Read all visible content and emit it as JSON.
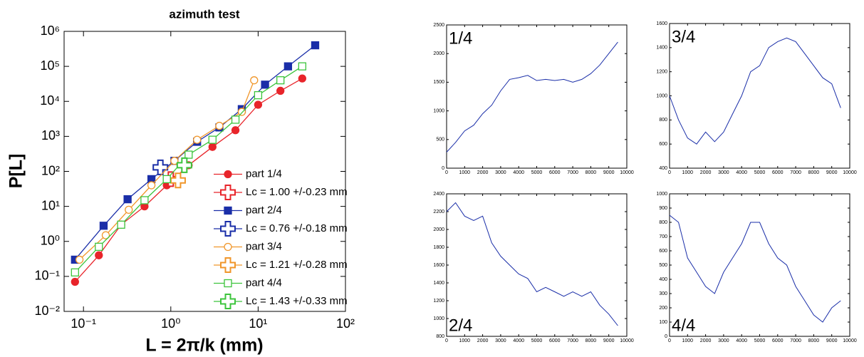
{
  "chart_data": [
    {
      "type": "line",
      "title": "azimuth test",
      "x_label": "L = 2π/k (mm)",
      "y_label": "P[L]",
      "xscale": "log",
      "yscale": "log",
      "grid": false,
      "legend": "lower right",
      "xlim": [
        0.06,
        100
      ],
      "ylim": [
        0.01,
        1000000
      ],
      "xticks": [
        {
          "value": 0.1,
          "label": "10⁻¹"
        },
        {
          "value": 1,
          "label": "10⁰"
        },
        {
          "value": 10,
          "label": "10¹"
        },
        {
          "value": 100,
          "label": "10²"
        }
      ],
      "yticks": [
        {
          "value": 0.01,
          "label": "10⁻²"
        },
        {
          "value": 0.1,
          "label": "10⁻¹"
        },
        {
          "value": 1,
          "label": "10⁰"
        },
        {
          "value": 10,
          "label": "10¹"
        },
        {
          "value": 100,
          "label": "10²"
        },
        {
          "value": 1000,
          "label": "10³"
        },
        {
          "value": 10000,
          "label": "10⁴"
        },
        {
          "value": 100000,
          "label": "10⁵"
        },
        {
          "value": 1000000,
          "label": "10⁶"
        }
      ],
      "series": [
        {
          "name": "part 1/4",
          "color": "#e8242a",
          "marker": "circle-filled",
          "line": true,
          "x": [
            0.08,
            0.15,
            0.27,
            0.5,
            0.9,
            1.6,
            3,
            5.5,
            10,
            18,
            32
          ],
          "values": [
            0.07,
            0.4,
            3,
            10,
            40,
            150,
            500,
            1500,
            8000,
            20000,
            45000
          ]
        },
        {
          "name": "Lc = 1.00 +/-0.23 mm",
          "color": "#e8242a",
          "marker": "cross-open",
          "line": false,
          "x": [
            1.0
          ],
          "values": [
            60
          ]
        },
        {
          "name": "part 2/4",
          "color": "#1a2ea8",
          "marker": "square-filled",
          "line": true,
          "x": [
            0.08,
            0.17,
            0.32,
            0.6,
            1.1,
            2,
            3.6,
            6.5,
            12,
            22,
            45
          ],
          "values": [
            0.3,
            2.8,
            16,
            60,
            200,
            700,
            1800,
            6000,
            30000,
            100000,
            400000
          ]
        },
        {
          "name": "Lc = 0.76 +/-0.18 mm",
          "color": "#1a2ea8",
          "marker": "cross-open",
          "line": false,
          "x": [
            0.76
          ],
          "values": [
            130
          ]
        },
        {
          "name": "part 3/4",
          "color": "#f0962a",
          "marker": "circle-open",
          "line": true,
          "x": [
            0.09,
            0.18,
            0.33,
            0.6,
            1.1,
            2,
            3.6,
            6.5,
            9
          ],
          "values": [
            0.3,
            1.5,
            8,
            40,
            200,
            800,
            2000,
            5000,
            40000
          ]
        },
        {
          "name": "Lc = 1.21 +/-0.28 mm",
          "color": "#f0962a",
          "marker": "cross-open",
          "line": false,
          "x": [
            1.21
          ],
          "values": [
            55
          ]
        },
        {
          "name": "part 4/4",
          "color": "#3cc43c",
          "marker": "square-open",
          "line": true,
          "x": [
            0.08,
            0.15,
            0.27,
            0.5,
            0.9,
            1.6,
            3,
            5.5,
            10,
            18,
            32
          ],
          "values": [
            0.13,
            0.7,
            3,
            15,
            60,
            300,
            800,
            3000,
            15000,
            40000,
            100000
          ]
        },
        {
          "name": "Lc = 1.43 +/-0.33 mm",
          "color": "#3cc43c",
          "marker": "cross-open",
          "line": false,
          "x": [
            1.43
          ],
          "values": [
            150
          ]
        }
      ]
    },
    {
      "type": "line",
      "panel_label": "1/4",
      "label_corner": "top-left",
      "color": "#1a2ea8",
      "xlim": [
        0,
        10000
      ],
      "ylim": [
        0,
        2500
      ],
      "xticks": [
        0,
        1000,
        2000,
        3000,
        4000,
        5000,
        6000,
        7000,
        8000,
        9000,
        10000
      ],
      "yticks": [
        0,
        500,
        1000,
        1500,
        2000,
        2500
      ],
      "x": [
        0,
        500,
        1000,
        1500,
        2000,
        2500,
        3000,
        3500,
        4000,
        4500,
        5000,
        5500,
        6000,
        6500,
        7000,
        7500,
        8000,
        8500,
        9000,
        9500
      ],
      "values": [
        280,
        450,
        650,
        750,
        950,
        1100,
        1350,
        1550,
        1580,
        1620,
        1530,
        1550,
        1530,
        1550,
        1500,
        1550,
        1650,
        1800,
        2000,
        2200
      ]
    },
    {
      "type": "line",
      "panel_label": "3/4",
      "label_corner": "top-left",
      "color": "#1a2ea8",
      "xlim": [
        0,
        10000
      ],
      "ylim": [
        400,
        1600
      ],
      "xticks": [
        0,
        1000,
        2000,
        3000,
        4000,
        5000,
        6000,
        7000,
        8000,
        9000,
        10000
      ],
      "yticks": [
        400,
        600,
        800,
        1000,
        1200,
        1400,
        1600
      ],
      "x": [
        0,
        500,
        1000,
        1500,
        2000,
        2500,
        3000,
        3500,
        4000,
        4500,
        5000,
        5500,
        6000,
        6500,
        7000,
        7500,
        8000,
        8500,
        9000,
        9500
      ],
      "values": [
        1000,
        800,
        650,
        600,
        700,
        620,
        700,
        850,
        1000,
        1200,
        1250,
        1400,
        1450,
        1480,
        1450,
        1350,
        1250,
        1150,
        1100,
        900
      ]
    },
    {
      "type": "line",
      "panel_label": "2/4",
      "label_corner": "bottom-left",
      "color": "#1a2ea8",
      "xlim": [
        0,
        10000
      ],
      "ylim": [
        800,
        2400
      ],
      "xticks": [
        0,
        1000,
        2000,
        3000,
        4000,
        5000,
        6000,
        7000,
        8000,
        9000,
        10000
      ],
      "yticks": [
        800,
        1000,
        1200,
        1400,
        1600,
        1800,
        2000,
        2200,
        2400
      ],
      "x": [
        0,
        500,
        1000,
        1500,
        2000,
        2500,
        3000,
        3500,
        4000,
        4500,
        5000,
        5500,
        6000,
        6500,
        7000,
        7500,
        8000,
        8500,
        9000,
        9500
      ],
      "values": [
        2200,
        2300,
        2150,
        2100,
        2150,
        1850,
        1700,
        1600,
        1500,
        1450,
        1300,
        1350,
        1300,
        1250,
        1300,
        1250,
        1300,
        1150,
        1050,
        920
      ]
    },
    {
      "type": "line",
      "panel_label": "4/4",
      "label_corner": "bottom-left",
      "color": "#1a2ea8",
      "xlim": [
        0,
        10000
      ],
      "ylim": [
        0,
        1000
      ],
      "xticks": [
        0,
        1000,
        2000,
        3000,
        4000,
        5000,
        6000,
        7000,
        8000,
        9000,
        10000
      ],
      "yticks": [
        0,
        100,
        200,
        300,
        400,
        500,
        600,
        700,
        800,
        900,
        1000
      ],
      "x": [
        0,
        500,
        1000,
        1500,
        2000,
        2500,
        3000,
        3500,
        4000,
        4500,
        5000,
        5500,
        6000,
        6500,
        7000,
        7500,
        8000,
        8500,
        9000,
        9500
      ],
      "values": [
        850,
        800,
        550,
        450,
        350,
        300,
        450,
        550,
        650,
        800,
        800,
        650,
        550,
        500,
        350,
        250,
        150,
        100,
        200,
        250
      ]
    }
  ]
}
